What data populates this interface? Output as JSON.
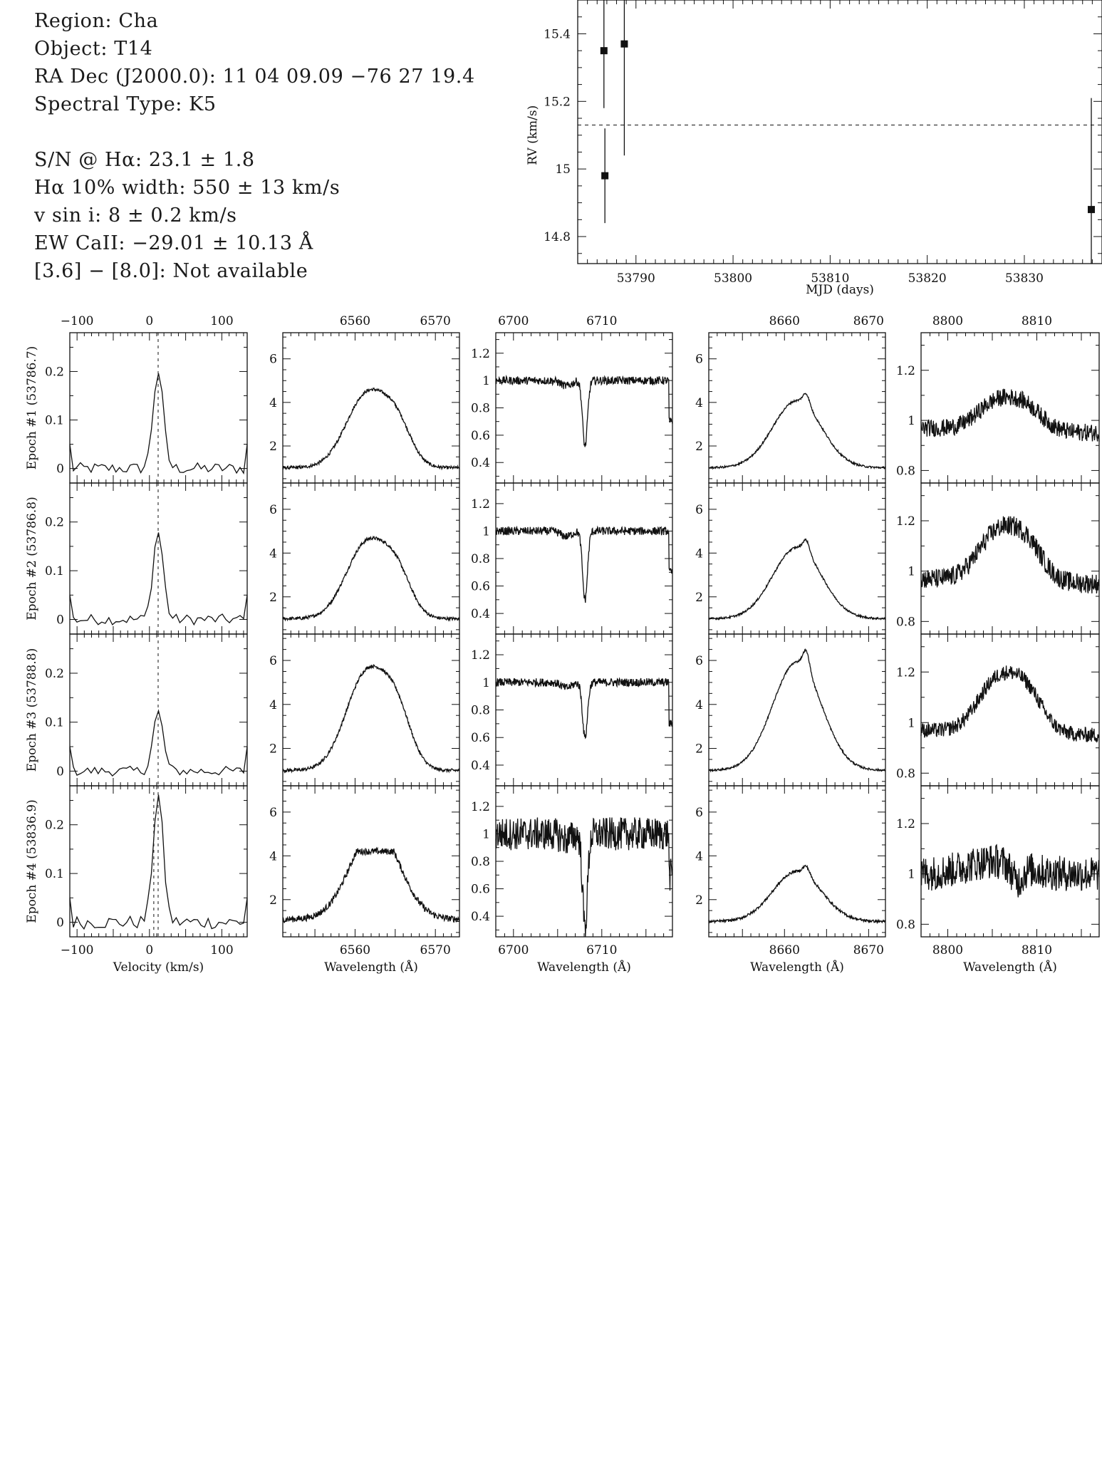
{
  "info": {
    "region": "Region: Cha",
    "object": "Object: T14",
    "radec": "RA Dec (J2000.0): 11 04 09.09 −76 27 19.4",
    "sptype": "Spectral Type: K5",
    "sn": "S/N @ Hα: 23.1 ± 1.8",
    "ha_width": "Hα 10% width: 550 ± 13 km/s",
    "vsini": "v sin i: 8 ± 0.2 km/s",
    "ew_caii": "EW CaII: −29.01 ± 10.13 Å",
    "irac": "[3.6] − [8.0]: Not available"
  },
  "chart_data": [
    {
      "type": "scatter",
      "title": "",
      "xlabel": "MJD (days)",
      "ylabel": "RV (km/s)",
      "xlim": [
        53784,
        53838
      ],
      "ylim": [
        14.72,
        15.5
      ],
      "xticks": [
        53790,
        53800,
        53810,
        53820,
        53830
      ],
      "yticks": [
        14.8,
        15,
        15.2,
        15.4
      ],
      "ytick_labels": [
        "14.8",
        "15",
        "15.2",
        "15.4"
      ],
      "mean_line": 15.13,
      "points": [
        {
          "x": 53786.7,
          "y": 15.35,
          "err": 0.17
        },
        {
          "x": 53786.8,
          "y": 14.98,
          "err": 0.14
        },
        {
          "x": 53788.8,
          "y": 15.37,
          "err": 0.33
        },
        {
          "x": 53836.9,
          "y": 14.88,
          "err": 0.33
        }
      ]
    },
    {
      "type": "line",
      "title": "",
      "row_labels": [
        "Epoch #1 (53786.7)",
        "Epoch #2 (53786.8)",
        "Epoch #3 (53788.8)",
        "Epoch #4 (53836.9)"
      ],
      "columns": [
        {
          "name": "rv-profile",
          "xlabel": "Velocity (km/s)",
          "xlim": [
            -110,
            135
          ],
          "ylim": [
            -0.03,
            0.28
          ],
          "xticks": [
            -100,
            0,
            100
          ],
          "xtick_labels": [
            "−100",
            "0",
            "100"
          ],
          "yticks": [
            0,
            0.1,
            0.2
          ],
          "ytick_labels": [
            "0",
            "0.1",
            "0.2"
          ],
          "vlines": [
            12
          ],
          "peak_heights": [
            0.2,
            0.18,
            0.12,
            0.26
          ]
        },
        {
          "name": "halpha",
          "xlabel": "Wavelength (Å)",
          "xlim": [
            6551,
            6573
          ],
          "ylim": [
            0.3,
            7.2
          ],
          "xticks": [
            6560,
            6570
          ],
          "yticks": [
            2,
            4,
            6
          ],
          "peak_fluxes": [
            5.1,
            5.2,
            6.4,
            4.2
          ]
        },
        {
          "name": "lithium",
          "xlabel": "Wavelength (Å)",
          "xlim": [
            6698,
            6718
          ],
          "ylim": [
            0.25,
            1.35
          ],
          "xticks": [
            6700,
            6710
          ],
          "yticks": [
            0.4,
            0.6,
            0.8,
            1,
            1.2
          ],
          "ytick_labels": [
            "0.4",
            "0.6",
            "0.8",
            "1",
            "1.2"
          ],
          "line_depths": [
            0.52,
            0.5,
            0.6,
            0.32
          ]
        },
        {
          "name": "caii-8662",
          "xlabel": "Wavelength (Å)",
          "xlim": [
            8651,
            8672
          ],
          "ylim": [
            0.3,
            7.2
          ],
          "xticks": [
            8660,
            8670
          ],
          "yticks": [
            2,
            4,
            6
          ],
          "peak_fluxes": [
            4.5,
            4.7,
            6.6,
            3.6
          ]
        },
        {
          "name": "region-8806",
          "xlabel": "Wavelength (Å)",
          "xlim": [
            8797,
            8817
          ],
          "ylim": [
            0.75,
            1.35
          ],
          "xticks": [
            8800,
            8810
          ],
          "yticks": [
            0.8,
            1,
            1.2
          ],
          "ytick_labels": [
            "0.8",
            "1",
            "1.2"
          ],
          "peak_fluxes": [
            1.12,
            1.22,
            1.24,
            1.05
          ]
        }
      ]
    }
  ]
}
